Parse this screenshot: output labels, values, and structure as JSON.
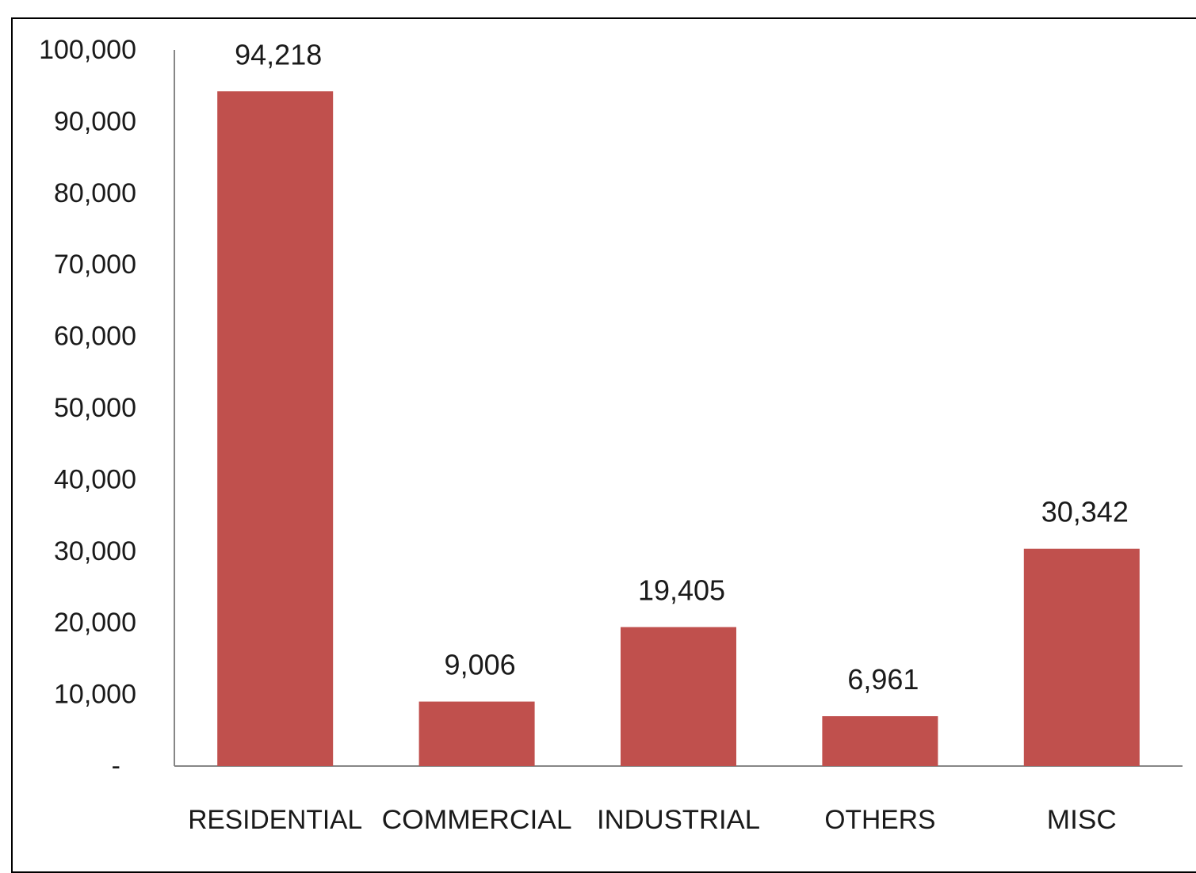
{
  "chart_data": {
    "type": "bar",
    "title": "",
    "xlabel": "",
    "ylabel": "",
    "categories": [
      "RESIDENTIAL",
      "COMMERCIAL",
      "INDUSTRIAL",
      "OTHERS",
      "MISC"
    ],
    "values": [
      94218,
      9006,
      19405,
      6961,
      30342
    ],
    "data_labels": [
      "94,218",
      "9,006",
      "19,405",
      "6,961",
      "30,342"
    ],
    "ylim": [
      0,
      100000
    ],
    "y_ticks": [
      0,
      10000,
      20000,
      30000,
      40000,
      50000,
      60000,
      70000,
      80000,
      90000,
      100000
    ],
    "y_tick_labels": [
      "-",
      "10,000",
      "20,000",
      "30,000",
      "40,000",
      "50,000",
      "60,000",
      "70,000",
      "80,000",
      "90,000",
      "100,000"
    ],
    "grid": false,
    "legend": "none",
    "bar_color": "#c0504d",
    "axis_color": "#868686"
  }
}
